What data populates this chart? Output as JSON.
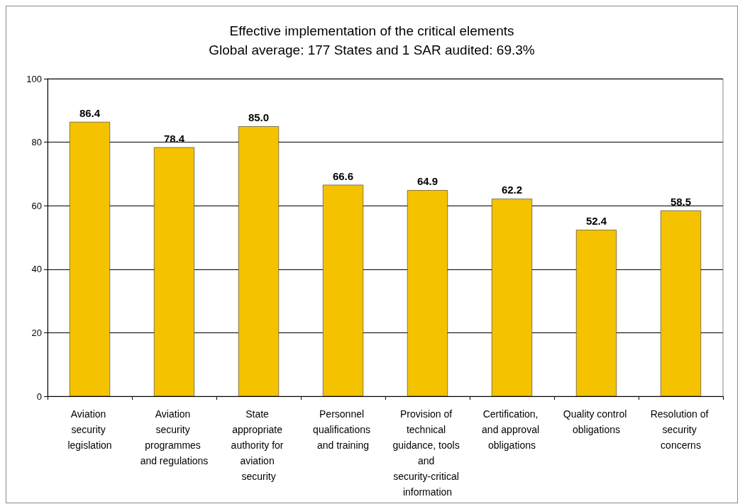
{
  "chart_data": {
    "type": "bar",
    "title": "Effective implementation of the critical elements",
    "subtitle": "Global average: 177 States and 1 SAR audited: 69.3%",
    "categories": [
      "Aviation security legislation",
      "Aviation security programmes and regulations",
      "State appropriate authority for aviation security",
      "Personnel qualifications and training",
      "Provision of technical guidance, tools and security-critical information",
      "Certification, and approval obligations",
      "Quality control obligations",
      "Resolution of security concerns"
    ],
    "values": [
      86.4,
      78.4,
      85.0,
      66.6,
      64.9,
      62.2,
      52.4,
      58.5
    ],
    "value_labels": [
      "86.4",
      "78.4",
      "85.0",
      "66.6",
      "64.9",
      "62.2",
      "52.4",
      "58.5"
    ],
    "color": "#f5c200",
    "ylim": [
      0,
      100
    ],
    "yticks": [
      0,
      20,
      40,
      60,
      80,
      100
    ],
    "grid": "y"
  }
}
